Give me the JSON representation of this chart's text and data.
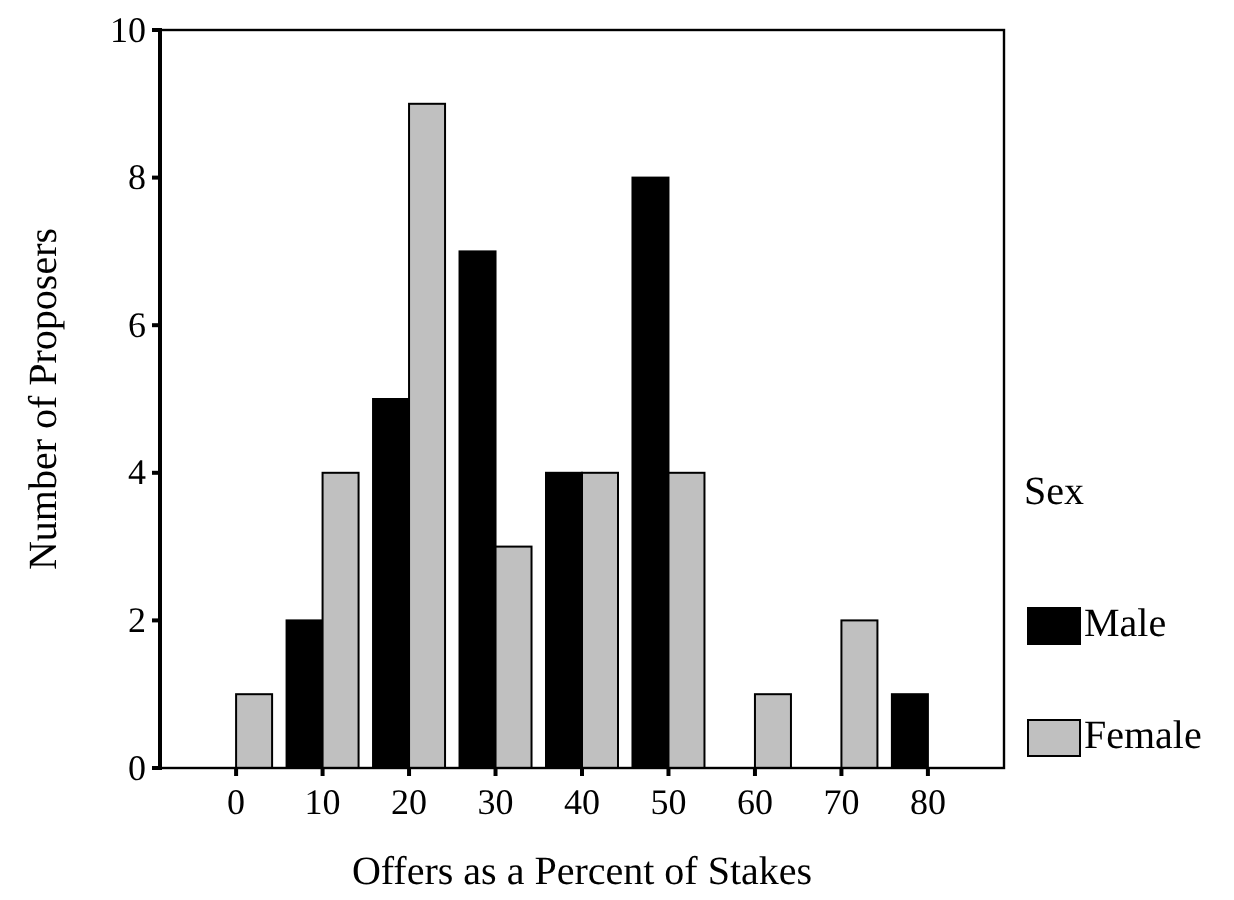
{
  "chart_data": {
    "type": "bar",
    "xlabel": "Offers as a Percent of Stakes",
    "ylabel": "Number of Proposers",
    "legend_title": "Sex",
    "legend": "right",
    "categories": [
      "0",
      "10",
      "20",
      "30",
      "40",
      "50",
      "60",
      "70",
      "80"
    ],
    "series": [
      {
        "name": "Male",
        "color": "#000000",
        "values": [
          null,
          2,
          5,
          7,
          4,
          8,
          null,
          null,
          1
        ]
      },
      {
        "name": "Female",
        "color": "#c0c0c0",
        "values": [
          1,
          4,
          9,
          3,
          4,
          4,
          1,
          2,
          null
        ]
      }
    ],
    "ylim": [
      0,
      10
    ],
    "yticks": [
      0,
      2,
      4,
      6,
      8,
      10
    ],
    "grid": false
  }
}
